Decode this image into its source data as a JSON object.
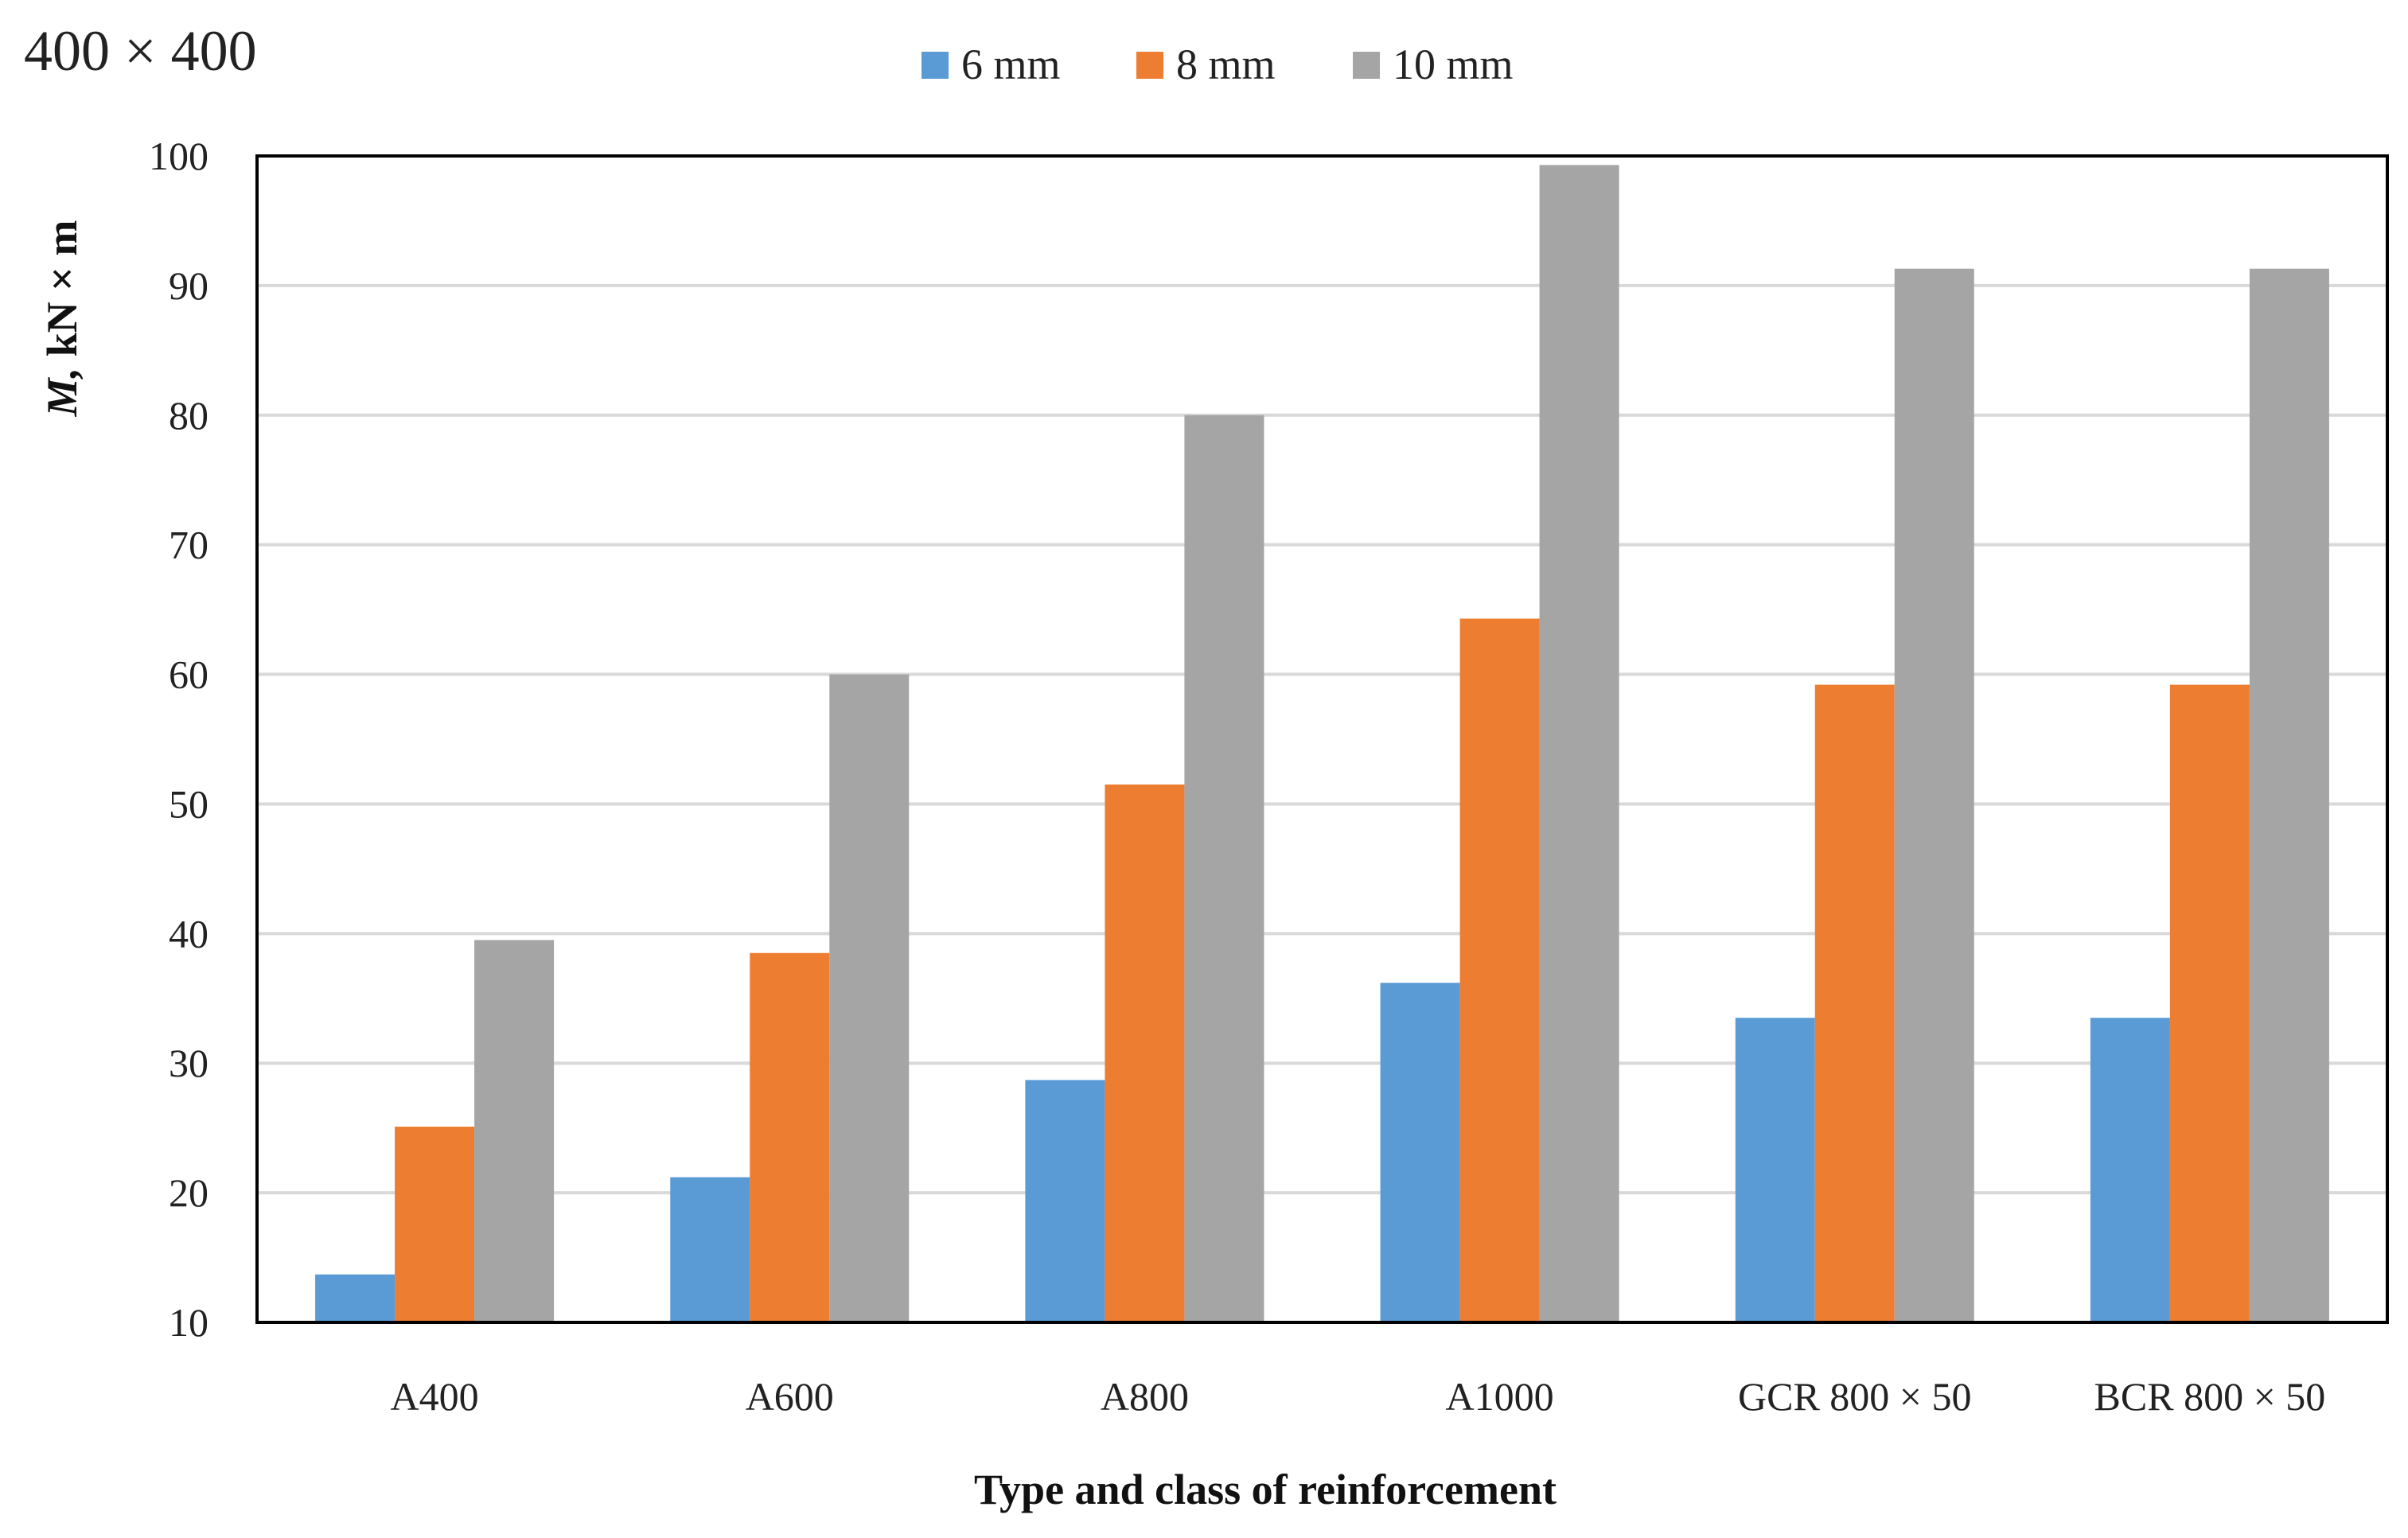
{
  "corner_label": "400 × 400",
  "chart_data": {
    "type": "bar",
    "title": "",
    "xlabel": "Type and class of reinforcement",
    "ylabel_italic": "M,",
    "ylabel_rest": " kN × m",
    "ylim": [
      10,
      100
    ],
    "yticks": [
      10,
      20,
      30,
      40,
      50,
      60,
      70,
      80,
      90,
      100
    ],
    "grid": true,
    "legend_position": "top-center",
    "categories": [
      "A400",
      "A600",
      "A800",
      "A1000",
      "GCR 800 × 50",
      "BCR 800 × 50"
    ],
    "series": [
      {
        "name": "6 mm",
        "color": "#5b9bd5",
        "values": [
          13.7,
          21.2,
          28.7,
          36.2,
          33.5,
          33.5
        ]
      },
      {
        "name": "8 mm",
        "color": "#ed7d31",
        "values": [
          25.1,
          38.5,
          51.5,
          64.3,
          59.2,
          59.2
        ]
      },
      {
        "name": "10 mm",
        "color": "#a5a5a5",
        "values": [
          39.5,
          60.0,
          80.0,
          99.3,
          91.3,
          91.3
        ]
      }
    ]
  }
}
